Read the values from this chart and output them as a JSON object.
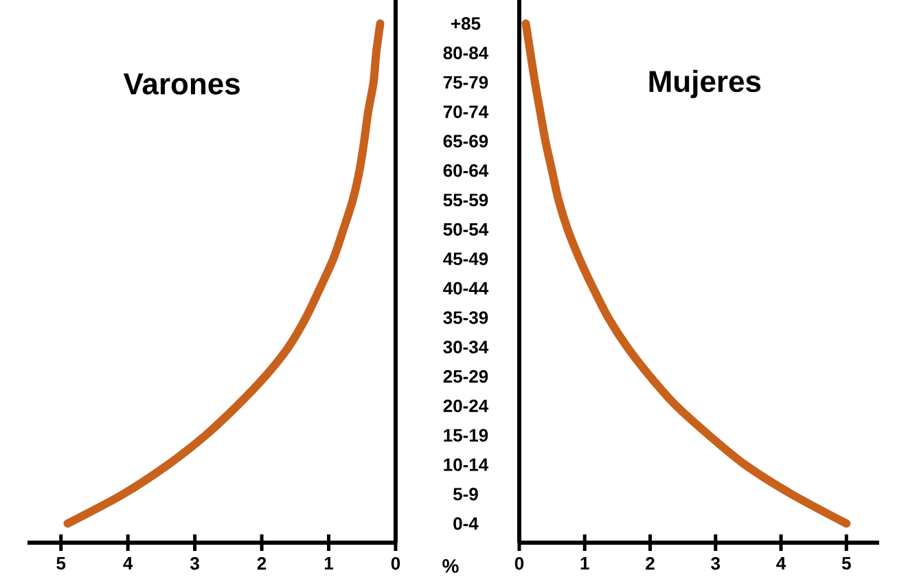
{
  "chart_data": [
    {
      "type": "line",
      "orientation": "horizontal",
      "title": "Varones",
      "xlabel": "%",
      "color": "#c8611c",
      "categories": [
        "+85",
        "80-84",
        "75-79",
        "70-74",
        "65-69",
        "60-64",
        "55-59",
        "50-54",
        "45-49",
        "40-44",
        "35-39",
        "30-34",
        "25-29",
        "20-24",
        "15-19",
        "10-14",
        "5-9",
        "0-4"
      ],
      "values": [
        0.23,
        0.29,
        0.33,
        0.41,
        0.47,
        0.54,
        0.64,
        0.78,
        0.93,
        1.13,
        1.34,
        1.6,
        1.95,
        2.37,
        2.84,
        3.4,
        4.07,
        4.9
      ],
      "xlim": [
        5.5,
        0
      ],
      "xticks": [
        5,
        4,
        3,
        2,
        1,
        0
      ]
    },
    {
      "type": "line",
      "orientation": "horizontal",
      "title": "Mujeres",
      "color": "#c8611c",
      "tick_labels": "x",
      "categories": [
        null,
        null,
        null,
        null,
        null,
        null,
        null,
        null,
        null,
        null,
        null,
        null,
        null,
        null,
        null,
        null,
        null,
        null
      ],
      "values": [
        0.1,
        0.17,
        0.24,
        0.32,
        0.4,
        0.5,
        0.6,
        0.74,
        0.92,
        1.13,
        1.36,
        1.65,
        2.0,
        2.4,
        2.9,
        3.45,
        4.16,
        5.0
      ],
      "xlim": [
        0,
        5.5
      ],
      "xticks": [
        0,
        1,
        2,
        3,
        4,
        5
      ]
    }
  ]
}
